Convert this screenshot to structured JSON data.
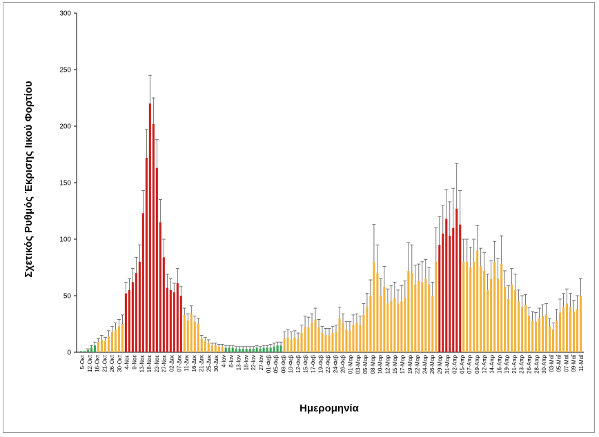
{
  "chart_data": {
    "type": "bar",
    "title": "",
    "ylabel": "Σχετικός Ρυθμός Έκρισης Ιικού Φορτίου",
    "xlabel": "Ημερομηνία",
    "ylim": [
      0,
      300
    ],
    "yticks": [
      0,
      50,
      100,
      150,
      200,
      250,
      300
    ],
    "grid": false,
    "legend": "none",
    "colors": {
      "green": "#3aa655",
      "yellow": "#f2b33d",
      "red": "#cc1f1f",
      "error": "#555555"
    },
    "tick_labels": [
      "5-Οκτ",
      "12-Οκτ",
      "16-Οκτ",
      "21-Οκτ",
      "26-Οκτ",
      "30-Οκτ",
      "4-Νοε",
      "9-Νοε",
      "13-Νοε",
      "18-Νοε",
      "23-Νοε",
      "27-Νοε",
      "02-Δεκ",
      "07-Δεκ",
      "11-Δεκ",
      "16-Δεκ",
      "21-Δεκ",
      "25-Δεκ",
      "30-Δεκ",
      "4-Ιαν",
      "8-Ιαν",
      "13-Ιαν",
      "18-Ιαν",
      "22-Ιαν",
      "27-Ιαν",
      "01-Φεβ",
      "05-Φεβ",
      "08-Φεβ",
      "10-Φεβ",
      "12-Φεβ",
      "15-Φεβ",
      "17-Φεβ",
      "19-Φεβ",
      "22-Φεβ",
      "24-Φεβ",
      "26-Φεβ",
      "01-Μαρ",
      "03-Μαρ",
      "05-Μαρ",
      "08-Μαρ",
      "10-Μαρ",
      "12-Μαρ",
      "15-Μαρ",
      "17-Μαρ",
      "19-Μαρ",
      "22-Μαρ",
      "24-Μαρ",
      "26-Μαρ",
      "29-Μαρ",
      "31-Μαρ",
      "02-Απρ",
      "05-Απρ",
      "07-Απρ",
      "09-Απρ",
      "12-Απρ",
      "14-Απρ",
      "16-Απρ",
      "19-Απρ",
      "21-Απρ",
      "23-Απρ",
      "26-Απρ",
      "28-Απρ",
      "30-Απρ",
      "03-Μαΐ",
      "05-Μαΐ",
      "07-Μαΐ",
      "09-Μαΐ",
      "11-Μαΐ"
    ],
    "bars": [
      {
        "v": 1,
        "e": 0,
        "c": "green"
      },
      {
        "v": 1,
        "e": 0,
        "c": "green"
      },
      {
        "v": 2,
        "e": 1,
        "c": "green"
      },
      {
        "v": 4,
        "e": 2,
        "c": "green"
      },
      {
        "v": 6,
        "e": 3,
        "c": "green"
      },
      {
        "v": 9,
        "e": 3,
        "c": "yellow"
      },
      {
        "v": 11,
        "e": 4,
        "c": "yellow"
      },
      {
        "v": 10,
        "e": 3,
        "c": "yellow"
      },
      {
        "v": 14,
        "e": 5,
        "c": "yellow"
      },
      {
        "v": 18,
        "e": 5,
        "c": "yellow"
      },
      {
        "v": 20,
        "e": 6,
        "c": "yellow"
      },
      {
        "v": 23,
        "e": 6,
        "c": "yellow"
      },
      {
        "v": 25,
        "e": 8,
        "c": "yellow"
      },
      {
        "v": 52,
        "e": 10,
        "c": "red"
      },
      {
        "v": 55,
        "e": 10,
        "c": "red"
      },
      {
        "v": 62,
        "e": 12,
        "c": "red"
      },
      {
        "v": 70,
        "e": 14,
        "c": "red"
      },
      {
        "v": 80,
        "e": 15,
        "c": "red"
      },
      {
        "v": 123,
        "e": 20,
        "c": "red"
      },
      {
        "v": 172,
        "e": 25,
        "c": "red"
      },
      {
        "v": 220,
        "e": 25,
        "c": "red"
      },
      {
        "v": 202,
        "e": 23,
        "c": "red"
      },
      {
        "v": 163,
        "e": 25,
        "c": "red"
      },
      {
        "v": 115,
        "e": 20,
        "c": "red"
      },
      {
        "v": 84,
        "e": 16,
        "c": "red"
      },
      {
        "v": 57,
        "e": 12,
        "c": "red"
      },
      {
        "v": 55,
        "e": 10,
        "c": "red"
      },
      {
        "v": 53,
        "e": 8,
        "c": "red"
      },
      {
        "v": 61,
        "e": 13,
        "c": "red"
      },
      {
        "v": 50,
        "e": 8,
        "c": "red"
      },
      {
        "v": 33,
        "e": 6,
        "c": "yellow"
      },
      {
        "v": 28,
        "e": 6,
        "c": "yellow"
      },
      {
        "v": 34,
        "e": 7,
        "c": "yellow"
      },
      {
        "v": 27,
        "e": 5,
        "c": "yellow"
      },
      {
        "v": 25,
        "e": 5,
        "c": "yellow"
      },
      {
        "v": 12,
        "e": 3,
        "c": "yellow"
      },
      {
        "v": 10,
        "e": 3,
        "c": "yellow"
      },
      {
        "v": 8,
        "e": 3,
        "c": "yellow"
      },
      {
        "v": 6,
        "e": 2,
        "c": "yellow"
      },
      {
        "v": 6,
        "e": 2,
        "c": "yellow"
      },
      {
        "v": 5,
        "e": 2,
        "c": "yellow"
      },
      {
        "v": 5,
        "e": 2,
        "c": "yellow"
      },
      {
        "v": 4,
        "e": 2,
        "c": "green"
      },
      {
        "v": 4,
        "e": 2,
        "c": "green"
      },
      {
        "v": 4,
        "e": 2,
        "c": "green"
      },
      {
        "v": 3,
        "e": 2,
        "c": "green"
      },
      {
        "v": 3,
        "e": 2,
        "c": "green"
      },
      {
        "v": 3,
        "e": 2,
        "c": "green"
      },
      {
        "v": 3,
        "e": 2,
        "c": "green"
      },
      {
        "v": 3,
        "e": 2,
        "c": "green"
      },
      {
        "v": 3,
        "e": 2,
        "c": "green"
      },
      {
        "v": 4,
        "e": 2,
        "c": "green"
      },
      {
        "v": 3,
        "e": 2,
        "c": "green"
      },
      {
        "v": 4,
        "e": 2,
        "c": "green"
      },
      {
        "v": 4,
        "e": 2,
        "c": "green"
      },
      {
        "v": 4,
        "e": 3,
        "c": "green"
      },
      {
        "v": 5,
        "e": 3,
        "c": "green"
      },
      {
        "v": 6,
        "e": 3,
        "c": "green"
      },
      {
        "v": 6,
        "e": 3,
        "c": "green"
      },
      {
        "v": 12,
        "e": 6,
        "c": "yellow"
      },
      {
        "v": 13,
        "e": 7,
        "c": "yellow"
      },
      {
        "v": 11,
        "e": 7,
        "c": "yellow"
      },
      {
        "v": 13,
        "e": 6,
        "c": "yellow"
      },
      {
        "v": 12,
        "e": 5,
        "c": "yellow"
      },
      {
        "v": 17,
        "e": 7,
        "c": "yellow"
      },
      {
        "v": 22,
        "e": 10,
        "c": "yellow"
      },
      {
        "v": 22,
        "e": 9,
        "c": "yellow"
      },
      {
        "v": 26,
        "e": 8,
        "c": "yellow"
      },
      {
        "v": 29,
        "e": 10,
        "c": "yellow"
      },
      {
        "v": 22,
        "e": 7,
        "c": "yellow"
      },
      {
        "v": 17,
        "e": 6,
        "c": "yellow"
      },
      {
        "v": 15,
        "e": 6,
        "c": "yellow"
      },
      {
        "v": 15,
        "e": 6,
        "c": "yellow"
      },
      {
        "v": 17,
        "e": 6,
        "c": "yellow"
      },
      {
        "v": 18,
        "e": 6,
        "c": "yellow"
      },
      {
        "v": 30,
        "e": 10,
        "c": "yellow"
      },
      {
        "v": 26,
        "e": 8,
        "c": "yellow"
      },
      {
        "v": 20,
        "e": 7,
        "c": "yellow"
      },
      {
        "v": 19,
        "e": 8,
        "c": "yellow"
      },
      {
        "v": 24,
        "e": 9,
        "c": "yellow"
      },
      {
        "v": 26,
        "e": 8,
        "c": "yellow"
      },
      {
        "v": 24,
        "e": 8,
        "c": "yellow"
      },
      {
        "v": 33,
        "e": 10,
        "c": "yellow"
      },
      {
        "v": 40,
        "e": 12,
        "c": "yellow"
      },
      {
        "v": 50,
        "e": 14,
        "c": "yellow"
      },
      {
        "v": 80,
        "e": 33,
        "c": "yellow"
      },
      {
        "v": 70,
        "e": 25,
        "c": "yellow"
      },
      {
        "v": 50,
        "e": 15,
        "c": "yellow"
      },
      {
        "v": 58,
        "e": 18,
        "c": "yellow"
      },
      {
        "v": 43,
        "e": 13,
        "c": "yellow"
      },
      {
        "v": 45,
        "e": 14,
        "c": "yellow"
      },
      {
        "v": 48,
        "e": 14,
        "c": "yellow"
      },
      {
        "v": 43,
        "e": 12,
        "c": "yellow"
      },
      {
        "v": 45,
        "e": 14,
        "c": "yellow"
      },
      {
        "v": 48,
        "e": 15,
        "c": "yellow"
      },
      {
        "v": 72,
        "e": 25,
        "c": "yellow"
      },
      {
        "v": 70,
        "e": 25,
        "c": "yellow"
      },
      {
        "v": 60,
        "e": 17,
        "c": "yellow"
      },
      {
        "v": 63,
        "e": 15,
        "c": "yellow"
      },
      {
        "v": 62,
        "e": 18,
        "c": "yellow"
      },
      {
        "v": 65,
        "e": 17,
        "c": "yellow"
      },
      {
        "v": 60,
        "e": 15,
        "c": "yellow"
      },
      {
        "v": 50,
        "e": 12,
        "c": "yellow"
      },
      {
        "v": 80,
        "e": 30,
        "c": "yellow"
      },
      {
        "v": 95,
        "e": 25,
        "c": "red"
      },
      {
        "v": 105,
        "e": 25,
        "c": "red"
      },
      {
        "v": 118,
        "e": 26,
        "c": "red"
      },
      {
        "v": 103,
        "e": 30,
        "c": "red"
      },
      {
        "v": 110,
        "e": 35,
        "c": "red"
      },
      {
        "v": 127,
        "e": 40,
        "c": "red"
      },
      {
        "v": 113,
        "e": 30,
        "c": "red"
      },
      {
        "v": 80,
        "e": 20,
        "c": "yellow"
      },
      {
        "v": 80,
        "e": 20,
        "c": "yellow"
      },
      {
        "v": 75,
        "e": 18,
        "c": "yellow"
      },
      {
        "v": 80,
        "e": 20,
        "c": "yellow"
      },
      {
        "v": 90,
        "e": 22,
        "c": "yellow"
      },
      {
        "v": 76,
        "e": 16,
        "c": "yellow"
      },
      {
        "v": 72,
        "e": 16,
        "c": "yellow"
      },
      {
        "v": 55,
        "e": 14,
        "c": "yellow"
      },
      {
        "v": 65,
        "e": 16,
        "c": "yellow"
      },
      {
        "v": 80,
        "e": 18,
        "c": "yellow"
      },
      {
        "v": 65,
        "e": 18,
        "c": "yellow"
      },
      {
        "v": 78,
        "e": 25,
        "c": "yellow"
      },
      {
        "v": 58,
        "e": 14,
        "c": "yellow"
      },
      {
        "v": 47,
        "e": 12,
        "c": "yellow"
      },
      {
        "v": 60,
        "e": 14,
        "c": "yellow"
      },
      {
        "v": 55,
        "e": 14,
        "c": "yellow"
      },
      {
        "v": 45,
        "e": 10,
        "c": "yellow"
      },
      {
        "v": 40,
        "e": 10,
        "c": "yellow"
      },
      {
        "v": 42,
        "e": 9,
        "c": "yellow"
      },
      {
        "v": 32,
        "e": 8,
        "c": "yellow"
      },
      {
        "v": 28,
        "e": 8,
        "c": "yellow"
      },
      {
        "v": 27,
        "e": 8,
        "c": "yellow"
      },
      {
        "v": 30,
        "e": 9,
        "c": "yellow"
      },
      {
        "v": 32,
        "e": 10,
        "c": "yellow"
      },
      {
        "v": 33,
        "e": 10,
        "c": "yellow"
      },
      {
        "v": 23,
        "e": 7,
        "c": "yellow"
      },
      {
        "v": 20,
        "e": 6,
        "c": "yellow"
      },
      {
        "v": 28,
        "e": 10,
        "c": "yellow"
      },
      {
        "v": 35,
        "e": 12,
        "c": "yellow"
      },
      {
        "v": 40,
        "e": 12,
        "c": "yellow"
      },
      {
        "v": 43,
        "e": 13,
        "c": "yellow"
      },
      {
        "v": 40,
        "e": 12,
        "c": "yellow"
      },
      {
        "v": 36,
        "e": 10,
        "c": "yellow"
      },
      {
        "v": 38,
        "e": 12,
        "c": "yellow"
      },
      {
        "v": 50,
        "e": 15,
        "c": "yellow"
      }
    ]
  }
}
